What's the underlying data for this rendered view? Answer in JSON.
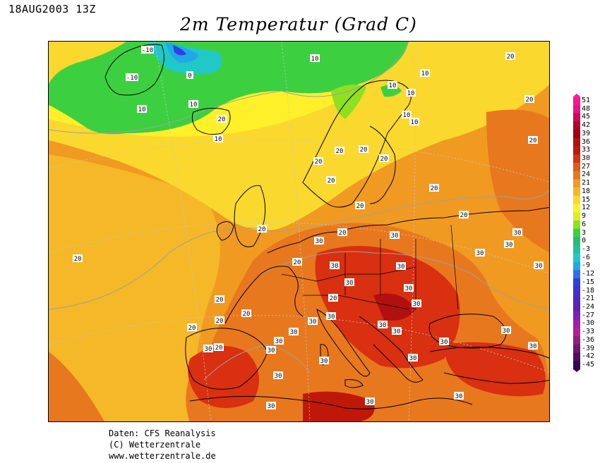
{
  "header": {
    "timestamp": "18AUG2003 13Z",
    "title": "2m Temperatur (Grad C)"
  },
  "credits": {
    "line1": "Daten: CFS Reanalysis",
    "line2": "(C) Wetterzentrale",
    "line3": "www.wetterzentrale.de"
  },
  "legend": {
    "ticks": [
      "51",
      "48",
      "45",
      "42",
      "39",
      "36",
      "33",
      "30",
      "27",
      "24",
      "21",
      "18",
      "15",
      "12",
      "9",
      "6",
      "3",
      "0",
      "-3",
      "-6",
      "-9",
      "-12",
      "-15",
      "-18",
      "-21",
      "-24",
      "-27",
      "-30",
      "-33",
      "-36",
      "-39",
      "-42",
      "-45"
    ],
    "colors": [
      "#ff1493",
      "#ee1288",
      "#cc0a5a",
      "#b5002a",
      "#a00010",
      "#b01010",
      "#c01808",
      "#d83010",
      "#e05a18",
      "#e8781e",
      "#f09a22",
      "#f5b828",
      "#fad82e",
      "#fff02a",
      "#d8f020",
      "#8ee020",
      "#3cd040",
      "#20c070",
      "#20c0a0",
      "#20c8c8",
      "#20a8e8",
      "#3070f0",
      "#3040e0",
      "#4030d0",
      "#5028c0",
      "#6020b0",
      "#8020b0",
      "#a020a8",
      "#b02098",
      "#902080",
      "#701870",
      "#501060",
      "#380850"
    ]
  },
  "contour_labels": [
    "-10",
    "-10",
    "0",
    "10",
    "10",
    "10",
    "20",
    "10",
    "10",
    "10",
    "10",
    "10",
    "10",
    "20",
    "20",
    "20",
    "20",
    "20",
    "20",
    "20",
    "20",
    "20",
    "20",
    "20",
    "20",
    "20",
    "20",
    "20",
    "30",
    "30",
    "30",
    "30",
    "30",
    "30",
    "30",
    "30",
    "30",
    "30",
    "30",
    "30",
    "30",
    "30",
    "30",
    "30",
    "30",
    "30",
    "30",
    "30",
    "20",
    "20",
    "20",
    "20",
    "20",
    "20",
    "30",
    "30",
    "30",
    "30",
    "30",
    "30",
    "30",
    "30"
  ]
}
